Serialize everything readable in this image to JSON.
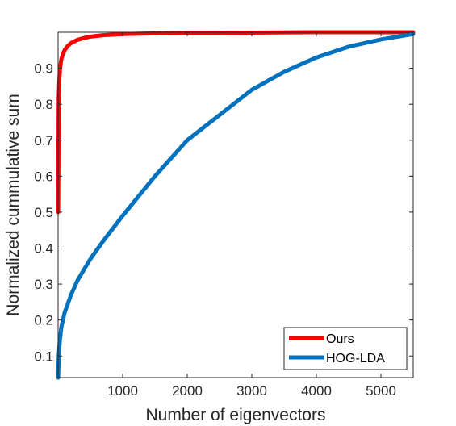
{
  "chart_data": {
    "type": "line",
    "title": "",
    "xlabel": "Number of eigenvectors",
    "ylabel": "Normalized cummulative sum",
    "xlim": [
      0,
      5500
    ],
    "ylim": [
      0.04,
      1.0
    ],
    "x_ticks": [
      1000,
      2000,
      3000,
      4000,
      5000
    ],
    "x_tick_labels": [
      "1000",
      "2000",
      "3000",
      "4000",
      "5000"
    ],
    "y_ticks": [
      0.1,
      0.2,
      0.3,
      0.4,
      0.5,
      0.6,
      0.7,
      0.8,
      0.9
    ],
    "y_tick_labels": [
      "0.1",
      "0.2",
      "0.3",
      "0.4",
      "0.5",
      "0.6",
      "0.7",
      "0.8",
      "0.9"
    ],
    "grid": false,
    "legend_position": "bottom-right",
    "series": [
      {
        "name": "Ours",
        "color": "#ff0000",
        "x": [
          1,
          10,
          20,
          30,
          50,
          75,
          100,
          150,
          200,
          300,
          400,
          500,
          700,
          1000,
          1500,
          2000,
          3000,
          4000,
          5000,
          5500
        ],
        "y": [
          0.5,
          0.82,
          0.87,
          0.9,
          0.925,
          0.94,
          0.95,
          0.962,
          0.97,
          0.979,
          0.984,
          0.988,
          0.992,
          0.995,
          0.997,
          0.998,
          0.999,
          1.0,
          1.0,
          1.0
        ]
      },
      {
        "name": "HOG-LDA",
        "color": "#0072bd",
        "x": [
          1,
          10,
          25,
          50,
          100,
          200,
          300,
          500,
          700,
          1000,
          1500,
          2000,
          2500,
          3000,
          3500,
          4000,
          4500,
          5000,
          5500
        ],
        "y": [
          0.04,
          0.1,
          0.14,
          0.18,
          0.22,
          0.27,
          0.31,
          0.37,
          0.42,
          0.49,
          0.6,
          0.7,
          0.77,
          0.84,
          0.89,
          0.93,
          0.96,
          0.98,
          0.995
        ]
      }
    ]
  }
}
